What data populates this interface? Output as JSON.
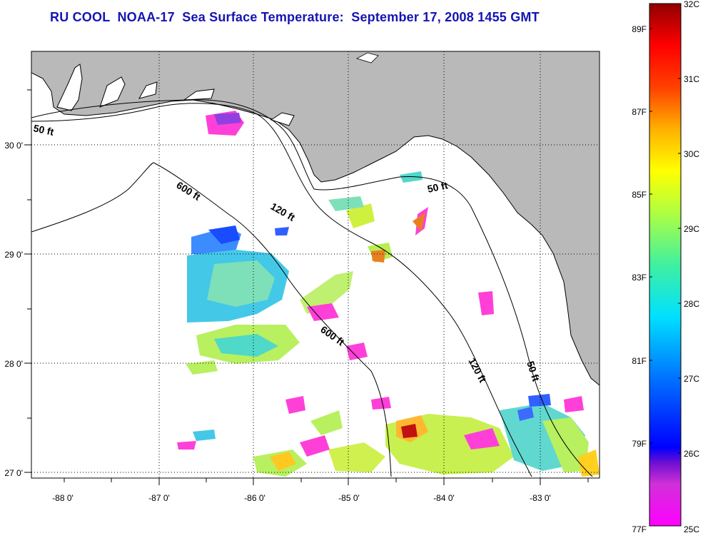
{
  "title": "RU COOL  NOAA-17  Sea Surface Temperature:  September 17, 2008 1455 GMT",
  "map": {
    "lon_labels": [
      "-88 0'",
      "-87 0'",
      "-86 0'",
      "-85 0'",
      "-84 0'",
      "-83 0'"
    ],
    "lat_labels": [
      "30 0'",
      "29 0'",
      "28 0'",
      "27 0'"
    ],
    "depth_contours": [
      {
        "label": "50 ft"
      },
      {
        "label": "600 ft"
      },
      {
        "label": "120 ft"
      },
      {
        "label": "50 ft"
      },
      {
        "label": "600 ft"
      },
      {
        "label": "120 ft"
      },
      {
        "label": "50 ft"
      }
    ],
    "colors": {
      "land": "#b9b9b9",
      "ocean": "#ffffff",
      "grid": "#000000"
    }
  },
  "colorbar": {
    "celsius_labels": [
      "32C",
      "31C",
      "30C",
      "29C",
      "28C",
      "27C",
      "26C",
      "25C"
    ],
    "fahrenheit_labels": [
      "89F",
      "87F",
      "85F",
      "83F",
      "81F",
      "79F",
      "77F"
    ],
    "range_c": [
      25,
      32
    ]
  }
}
